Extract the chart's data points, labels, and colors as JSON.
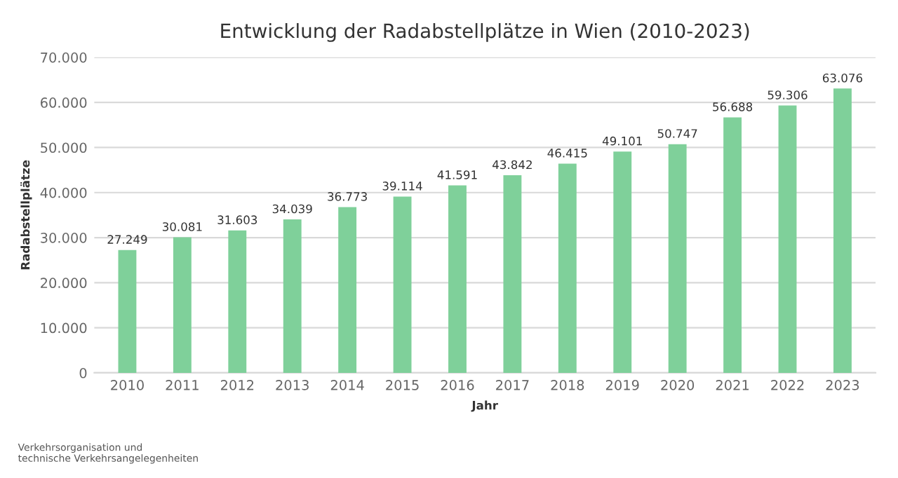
{
  "chart_data": {
    "type": "bar",
    "title": "Entwicklung der Radabstellplätze in Wien (2010-2023)",
    "xlabel": "Jahr",
    "ylabel": "Radabstellplätze",
    "categories": [
      "2010",
      "2011",
      "2012",
      "2013",
      "2014",
      "2015",
      "2016",
      "2017",
      "2018",
      "2019",
      "2020",
      "2021",
      "2022",
      "2023"
    ],
    "values": [
      27249,
      30081,
      31603,
      34039,
      36773,
      39114,
      41591,
      43842,
      46415,
      49101,
      50747,
      56688,
      59306,
      63076
    ],
    "value_labels": [
      "27.249",
      "30.081",
      "31.603",
      "34.039",
      "36.773",
      "39.114",
      "41.591",
      "43.842",
      "46.415",
      "49.101",
      "50.747",
      "56.688",
      "59.306",
      "63.076"
    ],
    "color": "#7fd09a",
    "ylim": [
      0,
      70000
    ],
    "yticks": [
      0,
      {
        "value": 10000,
        "label": "10.000"
      },
      {
        "value": 20000,
        "label": "20.000"
      },
      {
        "value": 30000,
        "label": "30.000"
      },
      {
        "value": 40000,
        "label": "40.000"
      },
      {
        "value": 50000,
        "label": "50.000"
      },
      {
        "value": 60000,
        "label": "60.000"
      },
      {
        "value": 70000,
        "label": "70.000"
      }
    ],
    "grid": "y",
    "legend": false,
    "annotations": [
      "Verkehrsorganisation und\ntechnische Verkehrsangelegenheiten"
    ]
  }
}
